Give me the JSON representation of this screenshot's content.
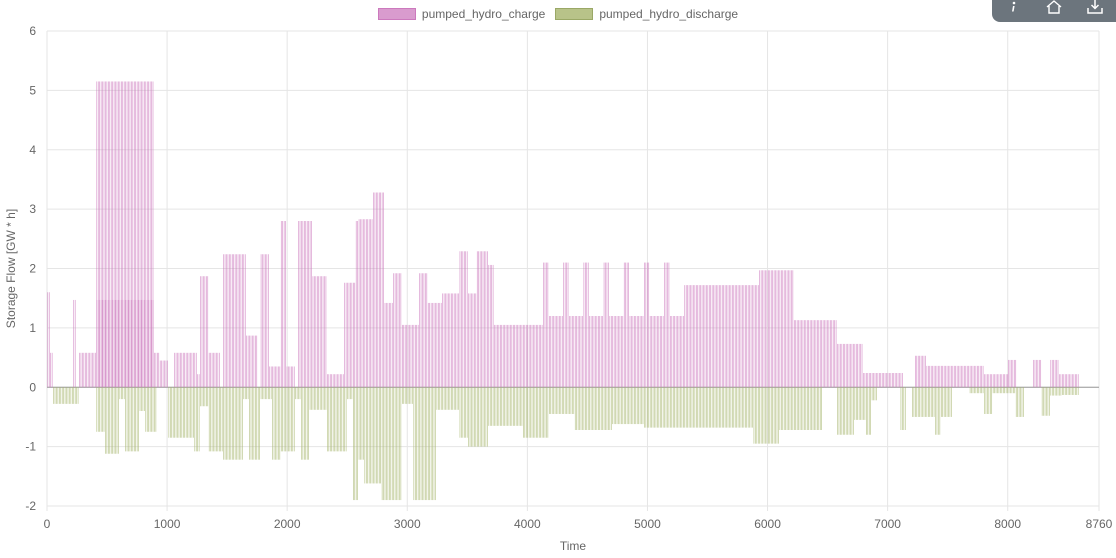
{
  "toolbar": {
    "buttons": [
      {
        "icon": "info-icon"
      },
      {
        "icon": "home-icon"
      },
      {
        "icon": "download-icon"
      }
    ]
  },
  "chart_data": {
    "type": "bar",
    "legend_position": "top-center",
    "grid": true,
    "xlabel": "Time",
    "ylabel": "Storage Flow [GW * h]",
    "xlim": [
      0,
      8760
    ],
    "ylim": [
      -2,
      6
    ],
    "x_ticks": [
      0,
      1000,
      2000,
      3000,
      4000,
      5000,
      6000,
      7000,
      8000,
      8760
    ],
    "y_ticks": [
      -2,
      -1,
      0,
      1,
      2,
      3,
      4,
      5,
      6
    ],
    "series": [
      {
        "name": "pumped_hydro_charge",
        "color": "#cc79bd",
        "segments": [
          [
            0,
            24,
            1.6
          ],
          [
            24,
            48,
            0.58
          ],
          [
            216,
            240,
            1.47
          ],
          [
            264,
            408,
            0.58
          ],
          [
            408,
            888,
            1.47
          ],
          [
            408,
            888,
            5.15
          ],
          [
            888,
            936,
            0.58
          ],
          [
            936,
            1008,
            0.45
          ],
          [
            1056,
            1248,
            0.58
          ],
          [
            1248,
            1272,
            0.22
          ],
          [
            1272,
            1344,
            1.87
          ],
          [
            1344,
            1440,
            0.58
          ],
          [
            1464,
            1656,
            2.24
          ],
          [
            1656,
            1752,
            0.87
          ],
          [
            1776,
            1848,
            2.24
          ],
          [
            1848,
            1944,
            0.35
          ],
          [
            1944,
            1992,
            2.8
          ],
          [
            1992,
            2064,
            0.35
          ],
          [
            2088,
            2208,
            2.8
          ],
          [
            2208,
            2328,
            1.87
          ],
          [
            2328,
            2472,
            0.22
          ],
          [
            2472,
            2568,
            1.76
          ],
          [
            2568,
            2592,
            2.8
          ],
          [
            2592,
            2712,
            2.83
          ],
          [
            2712,
            2808,
            3.28
          ],
          [
            2808,
            2880,
            1.42
          ],
          [
            2880,
            2952,
            1.92
          ],
          [
            2952,
            3096,
            1.05
          ],
          [
            3096,
            3168,
            1.92
          ],
          [
            3168,
            3288,
            1.42
          ],
          [
            3288,
            3432,
            1.58
          ],
          [
            3432,
            3504,
            2.29
          ],
          [
            3504,
            3576,
            1.58
          ],
          [
            3576,
            3672,
            2.29
          ],
          [
            3672,
            3720,
            2.06
          ],
          [
            3720,
            4128,
            1.05
          ],
          [
            4128,
            4176,
            2.1
          ],
          [
            4176,
            4296,
            1.2
          ],
          [
            4296,
            4344,
            2.1
          ],
          [
            4344,
            4464,
            1.2
          ],
          [
            4464,
            4512,
            2.1
          ],
          [
            4512,
            4632,
            1.2
          ],
          [
            4632,
            4680,
            2.1
          ],
          [
            4680,
            4800,
            1.2
          ],
          [
            4800,
            4848,
            2.1
          ],
          [
            4848,
            4968,
            1.2
          ],
          [
            4968,
            5016,
            2.1
          ],
          [
            5016,
            5136,
            1.2
          ],
          [
            5136,
            5184,
            2.1
          ],
          [
            5184,
            5304,
            1.2
          ],
          [
            5304,
            5448,
            1.72
          ],
          [
            5448,
            5928,
            1.72
          ],
          [
            5928,
            6216,
            1.97
          ],
          [
            6216,
            6576,
            1.13
          ],
          [
            6576,
            6792,
            0.73
          ],
          [
            6792,
            7128,
            0.24
          ],
          [
            7224,
            7320,
            0.53
          ],
          [
            7320,
            7368,
            0.36
          ],
          [
            7368,
            7800,
            0.36
          ],
          [
            7800,
            8000,
            0.22
          ],
          [
            8000,
            8064,
            0.46
          ],
          [
            8208,
            8280,
            0.46
          ],
          [
            8352,
            8424,
            0.46
          ],
          [
            8424,
            8592,
            0.22
          ]
        ]
      },
      {
        "name": "pumped_hydro_discharge",
        "color": "#abb974",
        "segments": [
          [
            48,
            264,
            -0.28
          ],
          [
            408,
            480,
            -0.75
          ],
          [
            480,
            600,
            -1.12
          ],
          [
            600,
            648,
            -0.2
          ],
          [
            648,
            768,
            -1.08
          ],
          [
            768,
            816,
            -0.4
          ],
          [
            816,
            912,
            -0.75
          ],
          [
            1008,
            1224,
            -0.85
          ],
          [
            1224,
            1272,
            -1.08
          ],
          [
            1272,
            1344,
            -0.32
          ],
          [
            1344,
            1464,
            -1.08
          ],
          [
            1464,
            1632,
            -1.22
          ],
          [
            1632,
            1680,
            -0.2
          ],
          [
            1680,
            1776,
            -1.22
          ],
          [
            1776,
            1872,
            -0.2
          ],
          [
            1872,
            1944,
            -1.22
          ],
          [
            1944,
            2064,
            -1.08
          ],
          [
            2064,
            2112,
            -0.2
          ],
          [
            2112,
            2184,
            -1.22
          ],
          [
            2184,
            2328,
            -0.38
          ],
          [
            2328,
            2496,
            -1.08
          ],
          [
            2496,
            2544,
            -0.2
          ],
          [
            2544,
            2592,
            -1.9
          ],
          [
            2592,
            2640,
            -1.22
          ],
          [
            2640,
            2784,
            -1.62
          ],
          [
            2784,
            2952,
            -1.9
          ],
          [
            2952,
            3048,
            -0.28
          ],
          [
            3048,
            3240,
            -1.9
          ],
          [
            3240,
            3432,
            -0.38
          ],
          [
            3432,
            3504,
            -0.85
          ],
          [
            3504,
            3672,
            -1.0
          ],
          [
            3672,
            3960,
            -0.65
          ],
          [
            3960,
            4176,
            -0.85
          ],
          [
            4176,
            4392,
            -0.45
          ],
          [
            4392,
            4704,
            -0.72
          ],
          [
            4704,
            4968,
            -0.62
          ],
          [
            4968,
            5280,
            -0.68
          ],
          [
            5280,
            5448,
            -0.68
          ],
          [
            5448,
            5880,
            -0.68
          ],
          [
            5880,
            6096,
            -0.95
          ],
          [
            6096,
            6192,
            -0.72
          ],
          [
            6192,
            6456,
            -0.72
          ],
          [
            6576,
            6720,
            -0.8
          ],
          [
            6720,
            6816,
            -0.55
          ],
          [
            6816,
            6864,
            -0.8
          ],
          [
            6864,
            6912,
            -0.22
          ],
          [
            7104,
            7152,
            -0.72
          ],
          [
            7200,
            7392,
            -0.5
          ],
          [
            7392,
            7440,
            -0.8
          ],
          [
            7440,
            7536,
            -0.5
          ],
          [
            7680,
            7800,
            -0.1
          ],
          [
            7800,
            7872,
            -0.45
          ],
          [
            7872,
            8064,
            -0.1
          ],
          [
            8064,
            8136,
            -0.5
          ],
          [
            8280,
            8352,
            -0.48
          ],
          [
            8352,
            8448,
            -0.14
          ],
          [
            8448,
            8592,
            -0.13
          ]
        ]
      }
    ]
  }
}
